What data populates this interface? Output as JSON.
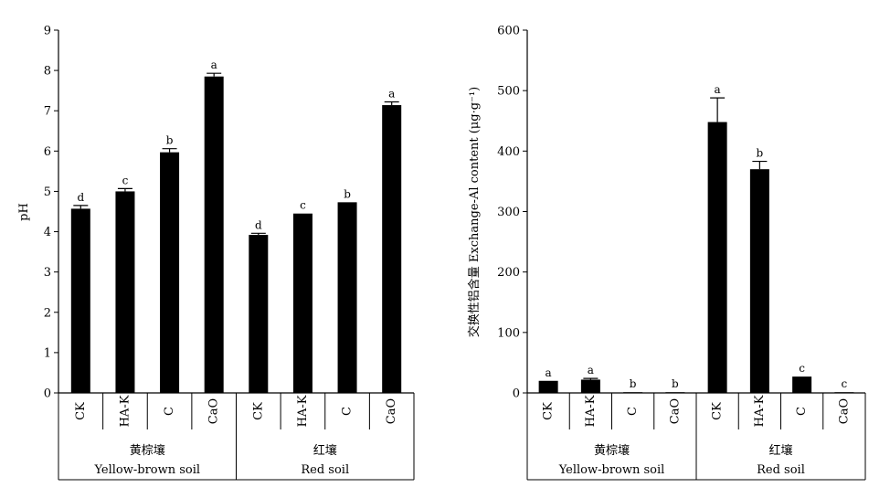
{
  "chart_data": [
    {
      "type": "bar",
      "ylabel": "pH",
      "ylim": [
        0,
        9
      ],
      "yticks": [
        0,
        1,
        2,
        3,
        4,
        5,
        6,
        7,
        8,
        9
      ],
      "categories": [
        "CK",
        "HA-K",
        "C",
        "CaO",
        "CK",
        "HA-K",
        "C",
        "CaO"
      ],
      "groups": [
        {
          "zh": "黄棕壤",
          "en": "Yellow-brown soil"
        },
        {
          "zh": "红壤",
          "en": "Red soil"
        }
      ],
      "values": [
        4.57,
        5.0,
        5.97,
        7.85,
        3.92,
        4.45,
        4.73,
        7.14
      ],
      "errors": [
        0.08,
        0.07,
        0.09,
        0.08,
        0.04,
        0.0,
        0.0,
        0.08
      ],
      "letters": [
        "d",
        "c",
        "b",
        "a",
        "d",
        "c",
        "b",
        "a"
      ],
      "grid": false
    },
    {
      "type": "bar",
      "ylabel": "交换性铝含量 Exchange-Al content (μg·g⁻¹)",
      "ylim": [
        0,
        600
      ],
      "yticks": [
        0,
        100,
        200,
        300,
        400,
        500,
        600
      ],
      "categories": [
        "CK",
        "HA-K",
        "C",
        "CaO",
        "CK",
        "HA-K",
        "C",
        "CaO"
      ],
      "groups": [
        {
          "zh": "黄棕壤",
          "en": "Yellow-brown soil"
        },
        {
          "zh": "红壤",
          "en": "Red soil"
        }
      ],
      "values": [
        20,
        22,
        1,
        0,
        448,
        370,
        27,
        1
      ],
      "errors": [
        0,
        2,
        0,
        0,
        40,
        13,
        0,
        0
      ],
      "letters": [
        "a",
        "a",
        "b",
        "b",
        "a",
        "b",
        "c",
        "c"
      ],
      "grid": false
    }
  ]
}
